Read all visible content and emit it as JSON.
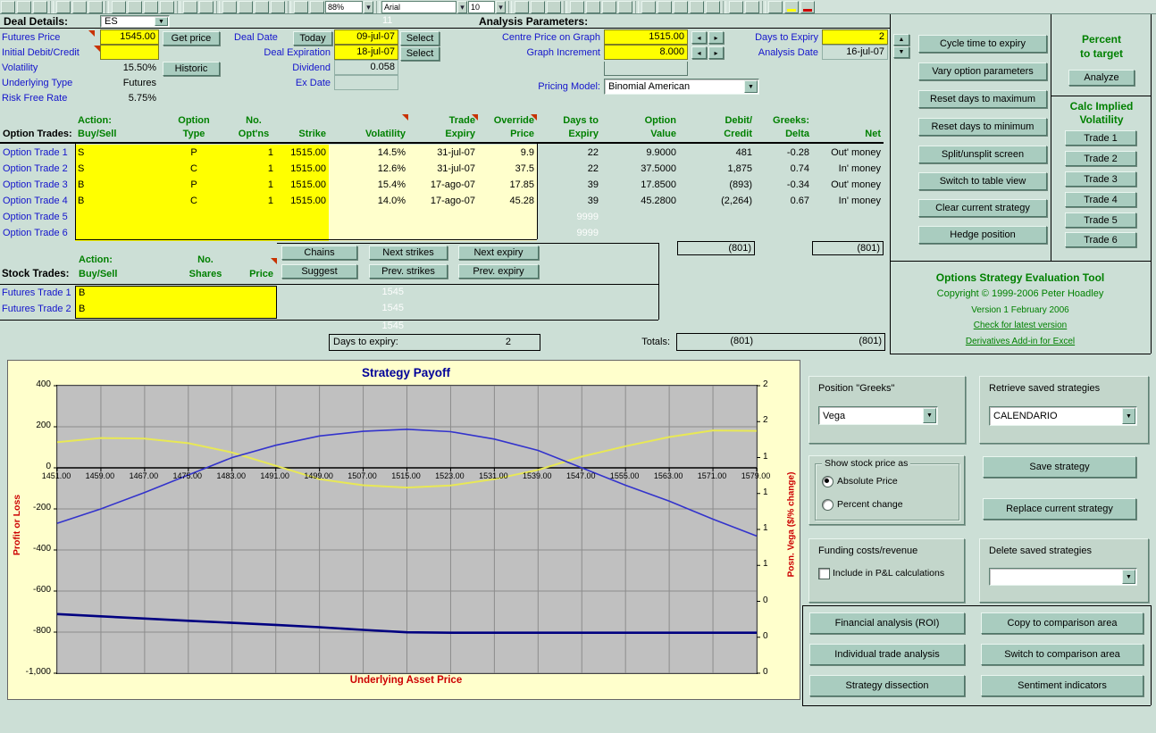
{
  "toolbar": {
    "zoom_value": "88%",
    "font_name": "Arial",
    "font_size": "10"
  },
  "header": {
    "deal_details_label": "Deal Details:",
    "symbol": "ES",
    "row_hint": "11",
    "analysis_params_label": "Analysis Parameters:"
  },
  "deal": {
    "futures_price": {
      "label": "Futures Price",
      "value": "1545.00",
      "button": "Get price"
    },
    "initial_debit": {
      "label": "Initial Debit/Credit",
      "value": ""
    },
    "volatility": {
      "label": "Volatility",
      "value": "15.50%",
      "button": "Historic"
    },
    "underlying_type": {
      "label": "Underlying Type",
      "value": "Futures"
    },
    "risk_free_rate": {
      "label": "Risk Free Rate",
      "value": "5.75%"
    },
    "deal_date": {
      "label": "Deal Date",
      "today_button": "Today",
      "value": "09-jul-07",
      "select_button": "Select"
    },
    "deal_expiration": {
      "label": "Deal Expiration",
      "value": "18-jul-07",
      "select_button": "Select"
    },
    "dividend": {
      "label": "Dividend",
      "value": "0.058"
    },
    "ex_date": {
      "label": "Ex Date",
      "value": ""
    }
  },
  "analysis": {
    "centre_price": {
      "label": "Centre Price on Graph",
      "value": "1515.00"
    },
    "graph_increment": {
      "label": "Graph Increment",
      "value": "8.000"
    },
    "days_to_expiry": {
      "label": "Days to Expiry",
      "value": "2"
    },
    "analysis_date": {
      "label": "Analysis Date",
      "value": "16-jul-07"
    },
    "pricing_model": {
      "label": "Pricing Model:",
      "value": "Binomial American"
    }
  },
  "action_buttons": [
    "Cycle time to expiry",
    "Vary option parameters",
    "Reset days to maximum",
    "Reset days to minimum",
    "Split/unsplit screen",
    "Switch to table view",
    "Clear current strategy",
    "Hedge position"
  ],
  "percent_panel": {
    "line1": "Percent",
    "line2": "to target",
    "analyze": "Analyze"
  },
  "calc_panel": {
    "line1": "Calc Implied",
    "line2": "Volatility",
    "trades": [
      "Trade 1",
      "Trade 2",
      "Trade 3",
      "Trade 4",
      "Trade 5",
      "Trade 6"
    ]
  },
  "option_trades": {
    "columns": [
      {
        "key": "label",
        "l1": "",
        "l2": "Option Trades:"
      },
      {
        "key": "action",
        "l1": "Action:",
        "l2": "Buy/Sell"
      },
      {
        "key": "type",
        "l1": "Option",
        "l2": "Type"
      },
      {
        "key": "qty",
        "l1": "No.",
        "l2": "Opt'ns"
      },
      {
        "key": "strike",
        "l1": "",
        "l2": "Strike"
      },
      {
        "key": "volatility",
        "l1": "",
        "l2": "Volatility"
      },
      {
        "key": "expiry",
        "l1": "Trade",
        "l2": "Expiry"
      },
      {
        "key": "override",
        "l1": "Override",
        "l2": "Price"
      },
      {
        "key": "days",
        "l1": "Days to",
        "l2": "Expiry"
      },
      {
        "key": "value",
        "l1": "Option",
        "l2": "Value"
      },
      {
        "key": "debit_credit",
        "l1": "Debit/",
        "l2": "Credit"
      },
      {
        "key": "delta",
        "l1": "Greeks:",
        "l2": "Delta"
      },
      {
        "key": "net",
        "l1": "",
        "l2": "Net"
      }
    ],
    "rows": [
      {
        "label": "Option Trade 1",
        "action": "S",
        "type": "P",
        "qty": "1",
        "strike": "1515.00",
        "volatility": "14.5%",
        "expiry": "31-jul-07",
        "override": "9.9",
        "days": "22",
        "value": "9.9000",
        "debit_credit": "481",
        "delta": "-0.28",
        "net": "Out' money"
      },
      {
        "label": "Option Trade 2",
        "action": "S",
        "type": "C",
        "qty": "1",
        "strike": "1515.00",
        "volatility": "12.6%",
        "expiry": "31-jul-07",
        "override": "37.5",
        "days": "22",
        "value": "37.5000",
        "debit_credit": "1,875",
        "delta": "0.74",
        "net": "In' money"
      },
      {
        "label": "Option Trade 3",
        "action": "B",
        "type": "P",
        "qty": "1",
        "strike": "1515.00",
        "volatility": "15.4%",
        "expiry": "17-ago-07",
        "override": "17.85",
        "days": "39",
        "value": "17.8500",
        "debit_credit": "(893)",
        "delta": "-0.34",
        "net": "Out' money"
      },
      {
        "label": "Option Trade 4",
        "action": "B",
        "type": "C",
        "qty": "1",
        "strike": "1515.00",
        "volatility": "14.0%",
        "expiry": "17-ago-07",
        "override": "45.28",
        "days": "39",
        "value": "45.2800",
        "debit_credit": "(2,264)",
        "delta": "0.67",
        "net": "In' money"
      },
      {
        "label": "Option Trade 5",
        "action": "",
        "type": "",
        "qty": "",
        "strike": "",
        "volatility": "",
        "expiry": "",
        "override": "",
        "days": "9999",
        "days_hidden": true,
        "value": "",
        "debit_credit": "",
        "delta": "",
        "net": ""
      },
      {
        "label": "Option Trade 6",
        "action": "",
        "type": "",
        "qty": "",
        "strike": "",
        "volatility": "",
        "expiry": "",
        "override": "",
        "days": "9999",
        "days_hidden": true,
        "value": "",
        "debit_credit": "",
        "delta": "",
        "net": ""
      }
    ],
    "subtotal_debit": "(801)",
    "subtotal_net": "(801)"
  },
  "helper_buttons": {
    "chains": "Chains",
    "suggest": "Suggest",
    "next_strikes": "Next strikes",
    "prev_strikes": "Prev. strikes",
    "next_expiry": "Next expiry",
    "prev_expiry": "Prev. expiry"
  },
  "stock_trades": {
    "section_label": "Stock Trades:",
    "h_action1": "Action:",
    "h_action2": "Buy/Sell",
    "h_no1": "No.",
    "h_no2": "Shares",
    "h_price": "Price",
    "rows": [
      {
        "label": "Futures Trade 1",
        "action": "B",
        "hidden_price": "1545"
      },
      {
        "label": "Futures Trade 2",
        "action": "B",
        "hidden_price": "1545"
      }
    ],
    "hidden_price_extra": "1545"
  },
  "summary": {
    "days_label": "Days to expiry:",
    "days_value": "2",
    "totals_label": "Totals:",
    "total_debit": "(801)",
    "total_net": "(801)"
  },
  "branding": {
    "title": "Options Strategy Evaluation Tool",
    "copyright": "Copyright © 1999-2006 Peter Hoadley",
    "version": "Version 1 February 2006",
    "link_latest": "Check for latest version",
    "link_addin": "Derivatives Add-in for Excel"
  },
  "chart_data": {
    "type": "line",
    "title": "Strategy Payoff",
    "xlabel": "Underlying Asset Price",
    "ylabel_left": "Profit or Loss",
    "ylabel_right": "Posn. Vega ($/% change)",
    "grid": true,
    "plot_bg": "#C0C0C0",
    "chart_bg": "#FFFFCC",
    "xlim": [
      1451,
      1579
    ],
    "ylim_left": [
      -1000,
      400
    ],
    "x": [
      1451,
      1459,
      1467,
      1475,
      1483,
      1491,
      1499,
      1507,
      1515,
      1523,
      1531,
      1539,
      1547,
      1555,
      1563,
      1571,
      1579
    ],
    "x_ticks": [
      1451,
      1459,
      1467,
      1475,
      1483,
      1491,
      1499,
      1507,
      1515,
      1523,
      1531,
      1539,
      1547,
      1555,
      1563,
      1571,
      1579
    ],
    "x_tick_labels": [
      "1451.00",
      "1459.00",
      "1467.00",
      "1475.00",
      "1483.00",
      "1491.00",
      "1499.00",
      "1507.00",
      "1515.00",
      "1523.00",
      "1531.00",
      "1539.00",
      "1547.00",
      "1555.00",
      "1563.00",
      "1571.00",
      "1579.00"
    ],
    "y_ticks_left_values": [
      400,
      200,
      0,
      -200,
      -400,
      -600,
      -800,
      -1000
    ],
    "y_ticks_left_labels": [
      "400",
      "200",
      "0",
      "-200",
      "-400",
      "-600",
      "-800",
      "-1,000"
    ],
    "y_ticks_right": [
      "2",
      "2",
      "1",
      "1",
      "1",
      "1",
      "0",
      "0",
      "0"
    ],
    "series": [
      {
        "id": "expiry-payoff-line",
        "name": "Payoff at expiry",
        "color": "#000080",
        "width": 2.6,
        "values": [
          -712,
          -723,
          -734,
          -745,
          -755,
          -765,
          -776,
          -789,
          -801,
          -803,
          -803,
          -803,
          -803,
          -803,
          -803,
          -803,
          -803
        ]
      },
      {
        "id": "vega-line",
        "name": "Position Vega (right axis, plotted estimate)",
        "color": "#E8E855",
        "width": 2,
        "values": [
          125,
          145,
          142,
          120,
          75,
          10,
          -55,
          -85,
          -96,
          -86,
          -55,
          -10,
          55,
          105,
          150,
          182,
          180
        ]
      },
      {
        "id": "current-pnl-line",
        "name": "Current P&L",
        "color": "#3333CC",
        "width": 1.6,
        "values": [
          -270,
          -200,
          -120,
          -35,
          50,
          110,
          155,
          178,
          188,
          176,
          140,
          85,
          0,
          -85,
          -162,
          -250,
          -332
        ]
      }
    ]
  },
  "greeks_panel": {
    "title": "Position \"Greeks\"",
    "value": "Vega"
  },
  "retrieve_panel": {
    "title": "Retrieve saved strategies",
    "value": "CALENDARIO"
  },
  "stock_display": {
    "title": "Show stock  price as",
    "opt_absolute": "Absolute  Price",
    "opt_percent": "Percent change",
    "selected": "Absolute  Price"
  },
  "save_panel": {
    "save": "Save strategy",
    "replace": "Replace current strategy"
  },
  "funding_panel": {
    "title": "Funding costs/revenue",
    "checkbox": "Include in P&L calculations",
    "checked": false
  },
  "delete_panel": {
    "title": "Delete saved strategies",
    "value": ""
  },
  "bottom_buttons": [
    "Financial analysis (ROI)",
    "Copy to comparison area",
    "Individual trade analysis",
    "Switch to comparison area",
    "Strategy dissection",
    "Sentiment indicators"
  ]
}
